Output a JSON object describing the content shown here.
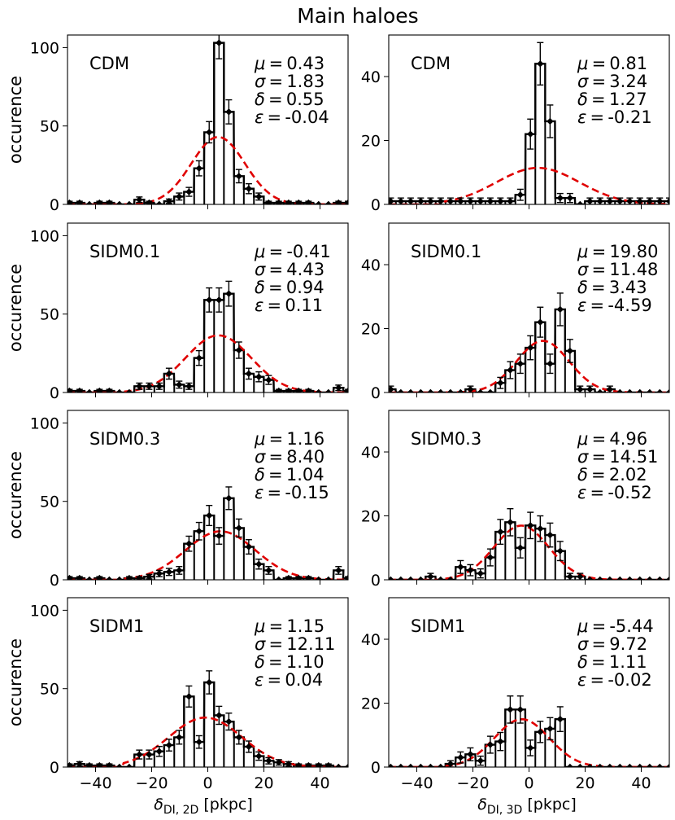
{
  "chart_data": {
    "type": "bar",
    "title": "Main haloes",
    "xlabels": {
      "left": {
        "main": "δ",
        "sub": "DI, 2D",
        "unit": " [pkpc]"
      },
      "right": {
        "main": "δ",
        "sub": "DI, 3D",
        "unit": " [pkpc]"
      }
    },
    "ylabel": "occurence",
    "xlim": [
      -50,
      50
    ],
    "xticks": [
      -40,
      -20,
      0,
      20,
      40
    ],
    "left_ylim": [
      0,
      108
    ],
    "left_yticks": [
      0,
      50,
      100
    ],
    "right_ylim": [
      0,
      53
    ],
    "right_yticks": [
      0,
      20,
      40
    ],
    "param_names": [
      "μ",
      "σ",
      "δ",
      "ε"
    ],
    "panels": [
      {
        "model": "CDM",
        "col": 0,
        "row": 0,
        "params": [
          "0.43",
          "1.83",
          "0.55",
          "-0.04"
        ],
        "bins": [
          [
            -49.3,
            1
          ],
          [
            -45.7,
            1
          ],
          [
            -42.2,
            0
          ],
          [
            -38.6,
            1
          ],
          [
            -35.1,
            1
          ],
          [
            -31.5,
            0
          ],
          [
            -28,
            0
          ],
          [
            -24.4,
            3
          ],
          [
            -20.9,
            1
          ],
          [
            -17.3,
            0
          ],
          [
            -13.8,
            2
          ],
          [
            -10.2,
            5
          ],
          [
            -6.7,
            8
          ],
          [
            -3.1,
            23
          ],
          [
            0.5,
            46
          ],
          [
            4,
            103
          ],
          [
            7.5,
            59
          ],
          [
            11.1,
            18
          ],
          [
            14.6,
            10
          ],
          [
            18.2,
            5
          ],
          [
            21.7,
            1
          ],
          [
            25.3,
            1
          ],
          [
            28.8,
            1
          ],
          [
            32.4,
            1
          ],
          [
            35.9,
            1
          ],
          [
            39.5,
            0
          ],
          [
            43,
            0
          ],
          [
            46.6,
            1
          ],
          [
            50,
            1
          ]
        ]
      },
      {
        "model": "CDM",
        "col": 1,
        "row": 0,
        "params": [
          "0.81",
          "3.24",
          "1.27",
          "-0.21"
        ],
        "bins": [
          [
            -49.3,
            1
          ],
          [
            -45.7,
            1
          ],
          [
            -42.2,
            1
          ],
          [
            -38.6,
            1
          ],
          [
            -35.1,
            1
          ],
          [
            -31.5,
            1
          ],
          [
            -28,
            1
          ],
          [
            -24.4,
            1
          ],
          [
            -20.9,
            1
          ],
          [
            -17.3,
            1
          ],
          [
            -13.8,
            1
          ],
          [
            -10.2,
            1
          ],
          [
            -6.7,
            1
          ],
          [
            -3.1,
            3
          ],
          [
            0.5,
            22
          ],
          [
            4,
            44
          ],
          [
            7.5,
            26
          ],
          [
            11.1,
            2
          ],
          [
            14.6,
            2
          ],
          [
            18.2,
            0
          ],
          [
            21.7,
            1
          ],
          [
            25.3,
            1
          ],
          [
            28.8,
            1
          ],
          [
            32.4,
            1
          ],
          [
            35.9,
            1
          ],
          [
            39.5,
            1
          ],
          [
            43,
            1
          ],
          [
            46.6,
            1
          ],
          [
            50,
            1
          ]
        ]
      },
      {
        "model": "SIDM0.1",
        "col": 0,
        "row": 1,
        "params": [
          "-0.41",
          "4.43",
          "0.94",
          "0.11"
        ],
        "bins": [
          [
            -49.3,
            1
          ],
          [
            -45.7,
            1
          ],
          [
            -42.2,
            0
          ],
          [
            -38.6,
            1
          ],
          [
            -35.1,
            1
          ],
          [
            -31.5,
            0
          ],
          [
            -28,
            0
          ],
          [
            -24.4,
            4
          ],
          [
            -20.9,
            4
          ],
          [
            -17.3,
            4
          ],
          [
            -13.8,
            12
          ],
          [
            -10.2,
            5
          ],
          [
            -6.7,
            4
          ],
          [
            -3.1,
            22
          ],
          [
            0.5,
            59
          ],
          [
            4,
            59
          ],
          [
            7.5,
            63
          ],
          [
            11.1,
            27
          ],
          [
            14.6,
            12
          ],
          [
            18.2,
            10
          ],
          [
            21.7,
            8
          ],
          [
            25.3,
            1
          ],
          [
            28.8,
            1
          ],
          [
            32.4,
            1
          ],
          [
            35.9,
            1
          ],
          [
            39.5,
            0
          ],
          [
            43,
            0
          ],
          [
            46.6,
            3
          ],
          [
            50,
            1
          ]
        ]
      },
      {
        "model": "SIDM0.1",
        "col": 1,
        "row": 1,
        "params": [
          "19.80",
          "11.48",
          "3.43",
          "-4.59"
        ],
        "bins": [
          [
            -49.3,
            1
          ],
          [
            -45.7,
            0
          ],
          [
            -42.2,
            0
          ],
          [
            -38.6,
            0
          ],
          [
            -35.1,
            0
          ],
          [
            -31.5,
            0
          ],
          [
            -28,
            0
          ],
          [
            -24.4,
            0
          ],
          [
            -20.9,
            1
          ],
          [
            -17.3,
            0
          ],
          [
            -13.8,
            0
          ],
          [
            -10.2,
            3
          ],
          [
            -6.7,
            7
          ],
          [
            -3.1,
            9
          ],
          [
            0.5,
            14
          ],
          [
            4,
            22
          ],
          [
            7.5,
            9
          ],
          [
            11.1,
            26
          ],
          [
            14.6,
            13
          ],
          [
            18.2,
            1
          ],
          [
            21.7,
            1
          ],
          [
            25.3,
            0
          ],
          [
            28.8,
            1
          ],
          [
            32.4,
            0
          ],
          [
            35.9,
            0
          ],
          [
            39.5,
            0
          ],
          [
            43,
            0
          ],
          [
            46.6,
            0
          ],
          [
            50,
            0
          ]
        ]
      },
      {
        "model": "SIDM0.3",
        "col": 0,
        "row": 2,
        "params": [
          "1.16",
          "8.40",
          "1.04",
          "-0.15"
        ],
        "bins": [
          [
            -49.3,
            1
          ],
          [
            -45.7,
            1
          ],
          [
            -42.2,
            0
          ],
          [
            -38.6,
            1
          ],
          [
            -35.1,
            0
          ],
          [
            -31.5,
            0
          ],
          [
            -28,
            1
          ],
          [
            -24.4,
            1
          ],
          [
            -20.9,
            2
          ],
          [
            -17.3,
            4
          ],
          [
            -13.8,
            5
          ],
          [
            -10.2,
            6
          ],
          [
            -6.7,
            23
          ],
          [
            -3.1,
            31
          ],
          [
            0.5,
            41
          ],
          [
            4,
            28
          ],
          [
            7.5,
            52
          ],
          [
            11.1,
            33
          ],
          [
            14.6,
            21
          ],
          [
            18.2,
            10
          ],
          [
            21.7,
            6
          ],
          [
            25.3,
            0
          ],
          [
            28.8,
            1
          ],
          [
            32.4,
            1
          ],
          [
            35.9,
            1
          ],
          [
            39.5,
            0
          ],
          [
            43,
            0
          ],
          [
            46.6,
            6
          ],
          [
            50,
            1
          ]
        ]
      },
      {
        "model": "SIDM0.3",
        "col": 1,
        "row": 2,
        "params": [
          "4.96",
          "14.51",
          "2.02",
          "-0.52"
        ],
        "bins": [
          [
            -49.3,
            0
          ],
          [
            -45.7,
            0
          ],
          [
            -42.2,
            0
          ],
          [
            -38.6,
            0
          ],
          [
            -35.1,
            1
          ],
          [
            -31.5,
            0
          ],
          [
            -28,
            0
          ],
          [
            -24.4,
            4
          ],
          [
            -20.9,
            3
          ],
          [
            -17.3,
            2
          ],
          [
            -13.8,
            7
          ],
          [
            -10.2,
            15
          ],
          [
            -6.7,
            18
          ],
          [
            -3.1,
            10
          ],
          [
            0.5,
            17
          ],
          [
            4,
            16
          ],
          [
            7.5,
            14
          ],
          [
            11.1,
            9
          ],
          [
            14.6,
            1
          ],
          [
            18.2,
            1
          ],
          [
            21.7,
            0
          ],
          [
            25.3,
            0
          ],
          [
            28.8,
            0
          ],
          [
            32.4,
            0
          ],
          [
            35.9,
            0
          ],
          [
            39.5,
            0
          ],
          [
            43,
            0
          ],
          [
            46.6,
            0
          ],
          [
            50,
            0
          ]
        ]
      },
      {
        "model": "SIDM1",
        "col": 0,
        "row": 3,
        "params": [
          "1.15",
          "12.11",
          "1.10",
          "0.04"
        ],
        "bins": [
          [
            -49.3,
            1
          ],
          [
            -45.7,
            2
          ],
          [
            -42.2,
            1
          ],
          [
            -38.6,
            1
          ],
          [
            -35.1,
            1
          ],
          [
            -31.5,
            0
          ],
          [
            -28,
            0
          ],
          [
            -24.4,
            8
          ],
          [
            -20.9,
            8
          ],
          [
            -17.3,
            10
          ],
          [
            -13.8,
            14
          ],
          [
            -10.2,
            19
          ],
          [
            -6.7,
            45
          ],
          [
            -3.1,
            16
          ],
          [
            0.5,
            54
          ],
          [
            4,
            33
          ],
          [
            7.5,
            29
          ],
          [
            11.1,
            19
          ],
          [
            14.6,
            13
          ],
          [
            18.2,
            7
          ],
          [
            21.7,
            4
          ],
          [
            25.3,
            3
          ],
          [
            28.8,
            2
          ],
          [
            32.4,
            1
          ],
          [
            35.9,
            1
          ],
          [
            39.5,
            1
          ],
          [
            43,
            1
          ],
          [
            46.6,
            0
          ],
          [
            50,
            0
          ]
        ]
      },
      {
        "model": "SIDM1",
        "col": 1,
        "row": 3,
        "params": [
          "-5.44",
          "9.72",
          "1.11",
          "-0.02"
        ],
        "bins": [
          [
            -49.3,
            0
          ],
          [
            -45.7,
            0
          ],
          [
            -42.2,
            0
          ],
          [
            -38.6,
            0
          ],
          [
            -35.1,
            0
          ],
          [
            -31.5,
            0
          ],
          [
            -28,
            1
          ],
          [
            -24.4,
            3
          ],
          [
            -20.9,
            4
          ],
          [
            -17.3,
            2
          ],
          [
            -13.8,
            7
          ],
          [
            -10.2,
            8
          ],
          [
            -6.7,
            18
          ],
          [
            -3.1,
            18
          ],
          [
            0.5,
            6
          ],
          [
            4,
            11
          ],
          [
            7.5,
            12
          ],
          [
            11.1,
            15
          ],
          [
            14.6,
            0
          ],
          [
            18.2,
            0
          ],
          [
            21.7,
            0
          ],
          [
            25.3,
            0
          ],
          [
            28.8,
            0
          ],
          [
            32.4,
            0
          ],
          [
            35.9,
            0
          ],
          [
            39.5,
            0
          ],
          [
            43,
            0
          ],
          [
            46.6,
            0
          ],
          [
            50,
            0
          ]
        ]
      }
    ],
    "colors": {
      "histogram": "#000000",
      "fit": "#e00000"
    }
  }
}
